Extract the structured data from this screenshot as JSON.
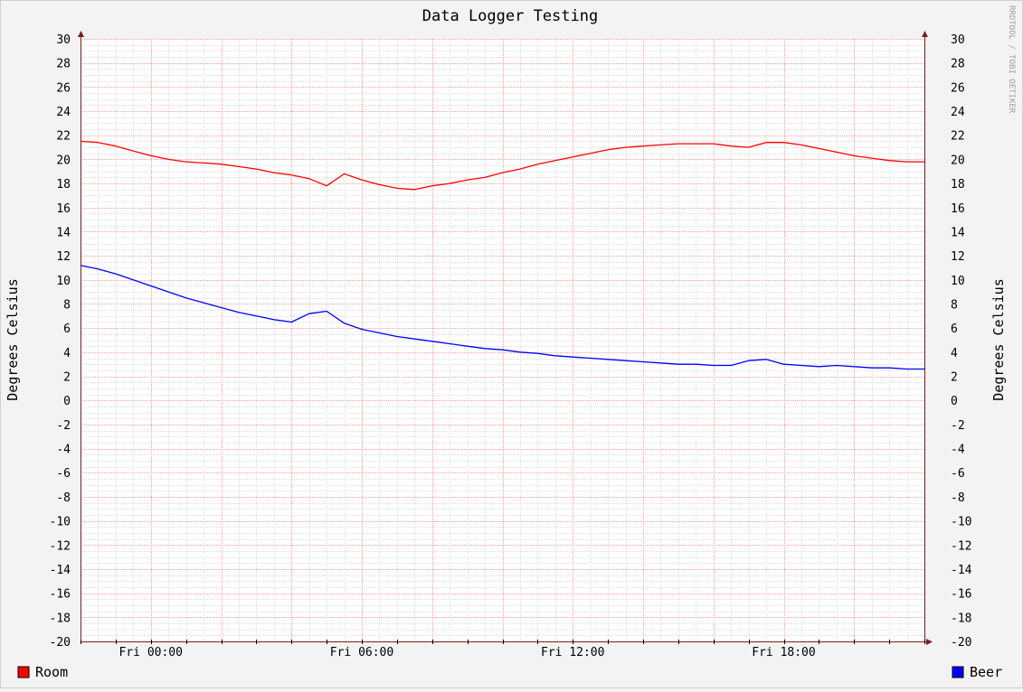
{
  "chart_data": {
    "type": "line",
    "title": "Data Logger Testing",
    "ylabel": "Degrees Celsius",
    "ylabel_right": "Degrees Celsius",
    "watermark": "RRDTOOL / TOBI OETIKER",
    "ylim": [
      -20,
      30
    ],
    "yticks": [
      -20,
      -18,
      -16,
      -14,
      -12,
      -10,
      -8,
      -6,
      -4,
      -2,
      0,
      2,
      4,
      6,
      8,
      10,
      12,
      14,
      16,
      18,
      20,
      22,
      24,
      26,
      28,
      30
    ],
    "xlim": [
      -2,
      22
    ],
    "xticks": [
      {
        "x": 0,
        "label": "Fri 00:00"
      },
      {
        "x": 6,
        "label": "Fri 06:00"
      },
      {
        "x": 12,
        "label": "Fri 12:00"
      },
      {
        "x": 18,
        "label": "Fri 18:00"
      }
    ],
    "x_units": "hours relative to Fri 00:00",
    "grid": true,
    "background": "#ffffff",
    "series": [
      {
        "name": "Room",
        "color": "#ff0000",
        "x": [
          -2,
          -1.5,
          -1,
          -0.5,
          0,
          0.5,
          1,
          1.5,
          2,
          2.5,
          3,
          3.5,
          4,
          4.5,
          5,
          5.5,
          6,
          6.5,
          7,
          7.5,
          8,
          8.5,
          9,
          9.5,
          10,
          10.5,
          11,
          11.5,
          12,
          12.5,
          13,
          13.5,
          14,
          14.5,
          15,
          15.5,
          16,
          16.5,
          17,
          17.5,
          18,
          18.5,
          19,
          19.5,
          20,
          20.5,
          21,
          21.5,
          22
        ],
        "y": [
          21.5,
          21.4,
          21.1,
          20.7,
          20.3,
          20,
          19.8,
          19.7,
          19.6,
          19.4,
          19.2,
          18.9,
          18.7,
          18.4,
          17.8,
          18.8,
          18.3,
          17.9,
          17.6,
          17.5,
          17.8,
          18,
          18.3,
          18.5,
          18.9,
          19.2,
          19.6,
          19.9,
          20.2,
          20.5,
          20.8,
          21,
          21.1,
          21.2,
          21.3,
          21.3,
          21.3,
          21.1,
          21,
          21.4,
          21.4,
          21.2,
          20.9,
          20.6,
          20.3,
          20.1,
          19.9,
          19.8,
          19.8
        ]
      },
      {
        "name": "Beer",
        "color": "#0000ff",
        "x": [
          -2,
          -1.5,
          -1,
          -0.5,
          0,
          0.5,
          1,
          1.5,
          2,
          2.5,
          3,
          3.5,
          4,
          4.5,
          5,
          5.5,
          6,
          6.5,
          7,
          7.5,
          8,
          8.5,
          9,
          9.5,
          10,
          10.5,
          11,
          11.5,
          12,
          12.5,
          13,
          13.5,
          14,
          14.5,
          15,
          15.5,
          16,
          16.5,
          17,
          17.5,
          18,
          18.5,
          19,
          19.5,
          20,
          20.5,
          21,
          21.5,
          22
        ],
        "y": [
          11.2,
          10.9,
          10.5,
          10,
          9.5,
          9,
          8.5,
          8.1,
          7.7,
          7.3,
          7,
          6.7,
          6.5,
          7.2,
          7.4,
          6.4,
          5.9,
          5.6,
          5.3,
          5.1,
          4.9,
          4.7,
          4.5,
          4.3,
          4.2,
          4,
          3.9,
          3.7,
          3.6,
          3.5,
          3.4,
          3.3,
          3.2,
          3.1,
          3,
          3,
          2.9,
          2.9,
          3.3,
          3.4,
          3,
          2.9,
          2.8,
          2.9,
          2.8,
          2.7,
          2.7,
          2.6,
          2.6
        ]
      }
    ],
    "legend": {
      "position": "bottom",
      "left": "Room",
      "right": "Beer"
    }
  }
}
